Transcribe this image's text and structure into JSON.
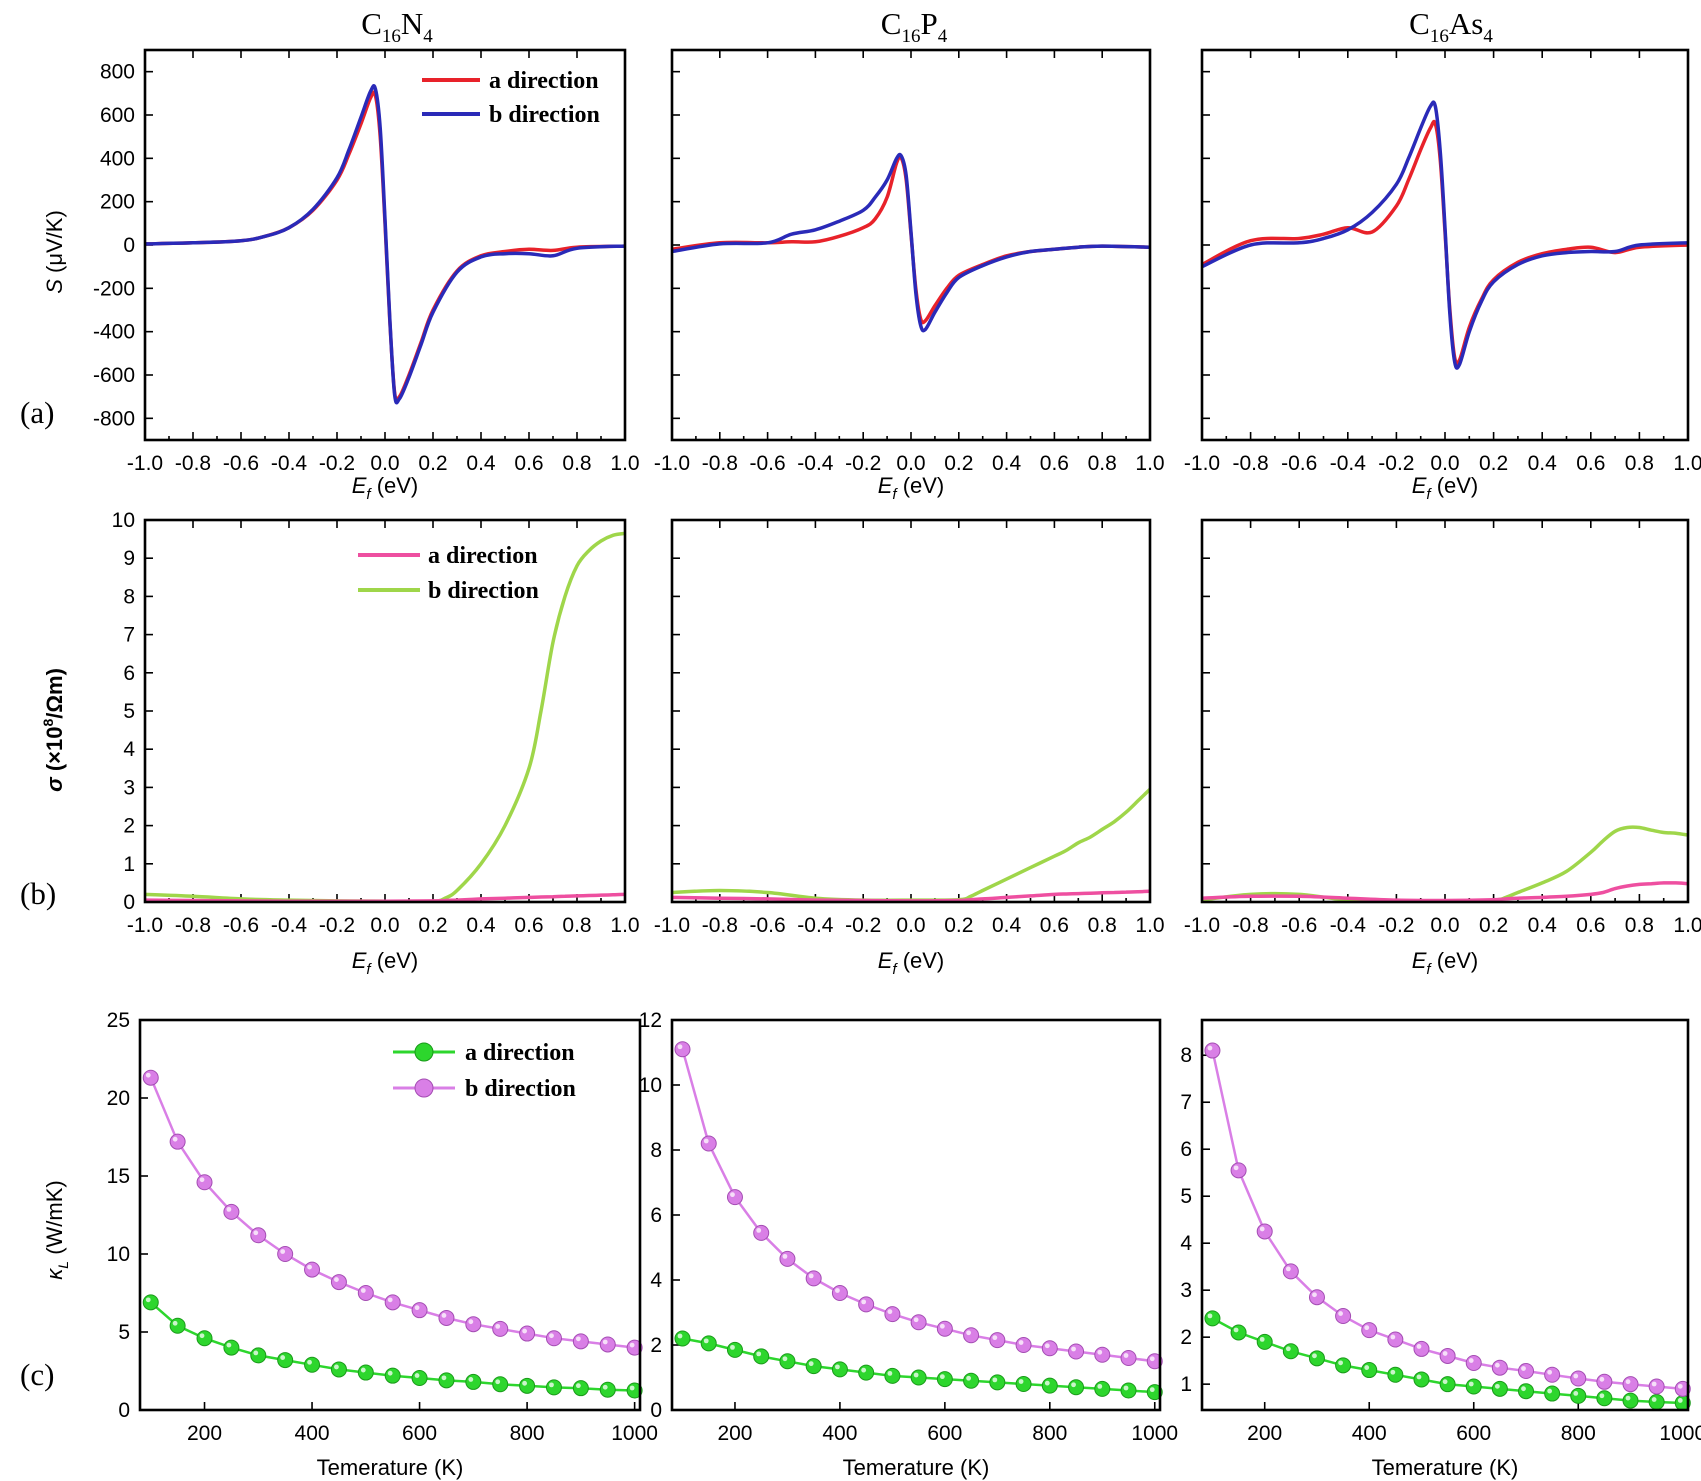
{
  "panel_titles": [
    "C16N4",
    "C16P4",
    "C16As4"
  ],
  "panel_letters": [
    "(a)",
    "(b)",
    "(c)"
  ],
  "legend": {
    "a_label": "a direction",
    "b_label": "b direction"
  },
  "colors": {
    "seebeck_a": "#e8222a",
    "seebeck_b": "#2a2ab8",
    "sigma_a": "#ee4fa0",
    "sigma_b": "#9fd64a",
    "kappa_a": "#2dd62d",
    "kappa_b": "#d97fe6"
  },
  "chart_data": [
    {
      "id": "seebeck",
      "type": "line",
      "xlabel": "Ef (eV)",
      "ylabel": "S (μV/K)",
      "xlim": [
        -1.0,
        1.0
      ],
      "ylim": [
        -900,
        900
      ],
      "xticks": [
        "-1.0",
        "-0.8",
        "-0.6",
        "-0.4",
        "-0.2",
        "0.0",
        "0.2",
        "0.4",
        "0.6",
        "0.8",
        "1.0"
      ],
      "yticks": [
        "800",
        "600",
        "400",
        "200",
        "0",
        "-200",
        "-400",
        "-600",
        "-800"
      ],
      "x": [
        -1.0,
        -0.8,
        -0.6,
        -0.5,
        -0.4,
        -0.3,
        -0.2,
        -0.15,
        -0.1,
        -0.06,
        -0.04,
        -0.02,
        0.0,
        0.02,
        0.04,
        0.06,
        0.1,
        0.15,
        0.2,
        0.3,
        0.4,
        0.5,
        0.6,
        0.7,
        0.8,
        1.0
      ],
      "panels": [
        {
          "title": "C16N4",
          "series": [
            {
              "name": "a direction",
              "values": [
                5,
                10,
                20,
                40,
                80,
                160,
                300,
                420,
                560,
                680,
                690,
                500,
                100,
                -350,
                -680,
                -700,
                -600,
                -450,
                -300,
                -120,
                -50,
                -30,
                -20,
                -25,
                -10,
                -5
              ]
            },
            {
              "name": "b direction",
              "values": [
                5,
                10,
                20,
                40,
                80,
                165,
                310,
                440,
                590,
                710,
                720,
                540,
                120,
                -340,
                -690,
                -710,
                -610,
                -460,
                -310,
                -125,
                -55,
                -40,
                -40,
                -50,
                -15,
                -5
              ]
            }
          ]
        },
        {
          "title": "C16P4",
          "series": [
            {
              "name": "a direction",
              "values": [
                -20,
                10,
                10,
                15,
                15,
                40,
                80,
                120,
                220,
                380,
                400,
                300,
                50,
                -200,
                -340,
                -350,
                -280,
                -200,
                -140,
                -90,
                -50,
                -30,
                -20,
                -10,
                -5,
                -10
              ]
            },
            {
              "name": "b direction",
              "values": [
                -30,
                5,
                10,
                50,
                70,
                110,
                160,
                220,
                300,
                400,
                410,
                320,
                60,
                -220,
                -370,
                -390,
                -310,
                -220,
                -150,
                -95,
                -55,
                -30,
                -20,
                -10,
                -5,
                -10
              ]
            }
          ]
        },
        {
          "title": "C16As4",
          "series": [
            {
              "name": "a direction",
              "values": [
                -90,
                20,
                30,
                50,
                80,
                60,
                180,
                300,
                440,
                540,
                560,
                400,
                60,
                -300,
                -520,
                -530,
                -380,
                -250,
                -160,
                -80,
                -40,
                -20,
                -10,
                -35,
                -10,
                0
              ]
            },
            {
              "name": "b direction",
              "values": [
                -100,
                0,
                10,
                30,
                70,
                150,
                280,
                400,
                540,
                640,
                640,
                440,
                80,
                -320,
                -540,
                -550,
                -400,
                -260,
                -170,
                -90,
                -50,
                -35,
                -30,
                -30,
                0,
                10
              ]
            }
          ]
        }
      ]
    },
    {
      "id": "sigma",
      "type": "line",
      "xlabel": "Ef (eV)",
      "ylabel": "σ (×10^8/Ωm)",
      "xlim": [
        -1.0,
        1.0
      ],
      "ylim": [
        0,
        10
      ],
      "xticks": [
        "-1.0",
        "-0.8",
        "-0.6",
        "-0.4",
        "-0.2",
        "0.0",
        "0.2",
        "0.4",
        "0.6",
        "0.8",
        "1.0"
      ],
      "yticks": [
        "10",
        "9",
        "8",
        "7",
        "6",
        "5",
        "4",
        "3",
        "2",
        "1",
        "0"
      ],
      "x": [
        -1.0,
        -0.8,
        -0.6,
        -0.4,
        -0.2,
        0.0,
        0.2,
        0.25,
        0.3,
        0.4,
        0.5,
        0.6,
        0.65,
        0.7,
        0.75,
        0.8,
        0.85,
        0.9,
        0.95,
        1.0
      ],
      "panels": [
        {
          "title": "C16N4",
          "series": [
            {
              "name": "a direction",
              "values": [
                0.05,
                0.04,
                0.03,
                0.02,
                0.02,
                0.02,
                0.03,
                0.04,
                0.05,
                0.08,
                0.1,
                0.12,
                0.13,
                0.14,
                0.15,
                0.16,
                0.17,
                0.18,
                0.19,
                0.2
              ]
            },
            {
              "name": "b direction",
              "values": [
                0.2,
                0.15,
                0.08,
                0.05,
                0.03,
                0.02,
                0.02,
                0.1,
                0.3,
                1.0,
                2.0,
                3.5,
                5.0,
                6.8,
                8.0,
                8.8,
                9.2,
                9.45,
                9.6,
                9.65
              ]
            }
          ]
        },
        {
          "title": "C16P4",
          "series": [
            {
              "name": "a direction",
              "values": [
                0.12,
                0.1,
                0.08,
                0.05,
                0.04,
                0.03,
                0.04,
                0.06,
                0.08,
                0.12,
                0.16,
                0.2,
                0.21,
                0.22,
                0.23,
                0.24,
                0.25,
                0.26,
                0.27,
                0.28
              ]
            },
            {
              "name": "b direction",
              "values": [
                0.25,
                0.3,
                0.25,
                0.1,
                0.05,
                0.05,
                0.06,
                0.15,
                0.3,
                0.6,
                0.9,
                1.2,
                1.35,
                1.55,
                1.7,
                1.9,
                2.1,
                2.35,
                2.65,
                2.95
              ]
            }
          ]
        },
        {
          "title": "C16As4",
          "series": [
            {
              "name": "a direction",
              "values": [
                0.1,
                0.15,
                0.15,
                0.1,
                0.05,
                0.04,
                0.06,
                0.08,
                0.1,
                0.12,
                0.15,
                0.2,
                0.25,
                0.35,
                0.42,
                0.46,
                0.48,
                0.5,
                0.5,
                0.48
              ]
            },
            {
              "name": "b direction",
              "values": [
                0.05,
                0.2,
                0.2,
                0.05,
                0.03,
                0.03,
                0.05,
                0.12,
                0.25,
                0.5,
                0.8,
                1.3,
                1.6,
                1.85,
                1.95,
                1.95,
                1.88,
                1.82,
                1.8,
                1.75
              ]
            }
          ]
        }
      ]
    },
    {
      "id": "kappa",
      "type": "line",
      "xlabel": "Temerature (K)",
      "ylabel": "κL (W/mK)",
      "xlim": [
        80,
        1010
      ],
      "xticks": [
        200,
        400,
        600,
        800,
        1000
      ],
      "x": [
        100,
        150,
        200,
        250,
        300,
        350,
        400,
        450,
        500,
        550,
        600,
        650,
        700,
        750,
        800,
        850,
        900,
        950,
        1000
      ],
      "panels": [
        {
          "title": "C16N4",
          "ylim": [
            0,
            25
          ],
          "yticks": [
            0,
            5,
            10,
            15,
            20,
            25
          ],
          "series": [
            {
              "name": "a direction",
              "values": [
                6.9,
                5.4,
                4.6,
                4.0,
                3.5,
                3.2,
                2.9,
                2.6,
                2.4,
                2.2,
                2.05,
                1.9,
                1.8,
                1.65,
                1.55,
                1.45,
                1.4,
                1.3,
                1.25
              ]
            },
            {
              "name": "b direction",
              "values": [
                21.3,
                17.2,
                14.6,
                12.7,
                11.2,
                10.0,
                9.0,
                8.2,
                7.5,
                6.9,
                6.4,
                5.9,
                5.5,
                5.2,
                4.9,
                4.6,
                4.4,
                4.2,
                4.0
              ]
            }
          ]
        },
        {
          "title": "C16P4",
          "ylim": [
            0,
            12
          ],
          "yticks": [
            0,
            2,
            4,
            6,
            8,
            10,
            12
          ],
          "series": [
            {
              "name": "a direction",
              "values": [
                2.2,
                2.05,
                1.85,
                1.65,
                1.5,
                1.35,
                1.25,
                1.15,
                1.05,
                1.0,
                0.95,
                0.9,
                0.85,
                0.8,
                0.75,
                0.7,
                0.65,
                0.6,
                0.55
              ]
            },
            {
              "name": "b direction",
              "values": [
                11.1,
                8.2,
                6.55,
                5.45,
                4.65,
                4.05,
                3.6,
                3.25,
                2.95,
                2.7,
                2.5,
                2.3,
                2.15,
                2.0,
                1.9,
                1.8,
                1.7,
                1.6,
                1.5
              ]
            }
          ]
        },
        {
          "title": "C16As4",
          "ylim": [
            0.45,
            8.75
          ],
          "yticks": [
            1,
            2,
            3,
            4,
            5,
            6,
            7,
            8
          ],
          "series": [
            {
              "name": "a direction",
              "values": [
                2.4,
                2.1,
                1.9,
                1.7,
                1.55,
                1.4,
                1.3,
                1.2,
                1.1,
                1.0,
                0.95,
                0.9,
                0.85,
                0.8,
                0.75,
                0.7,
                0.65,
                0.62,
                0.6
              ]
            },
            {
              "name": "b direction",
              "values": [
                8.1,
                5.55,
                4.25,
                3.4,
                2.85,
                2.45,
                2.15,
                1.95,
                1.75,
                1.6,
                1.45,
                1.35,
                1.28,
                1.2,
                1.12,
                1.05,
                1.0,
                0.95,
                0.9
              ]
            }
          ]
        }
      ]
    }
  ]
}
